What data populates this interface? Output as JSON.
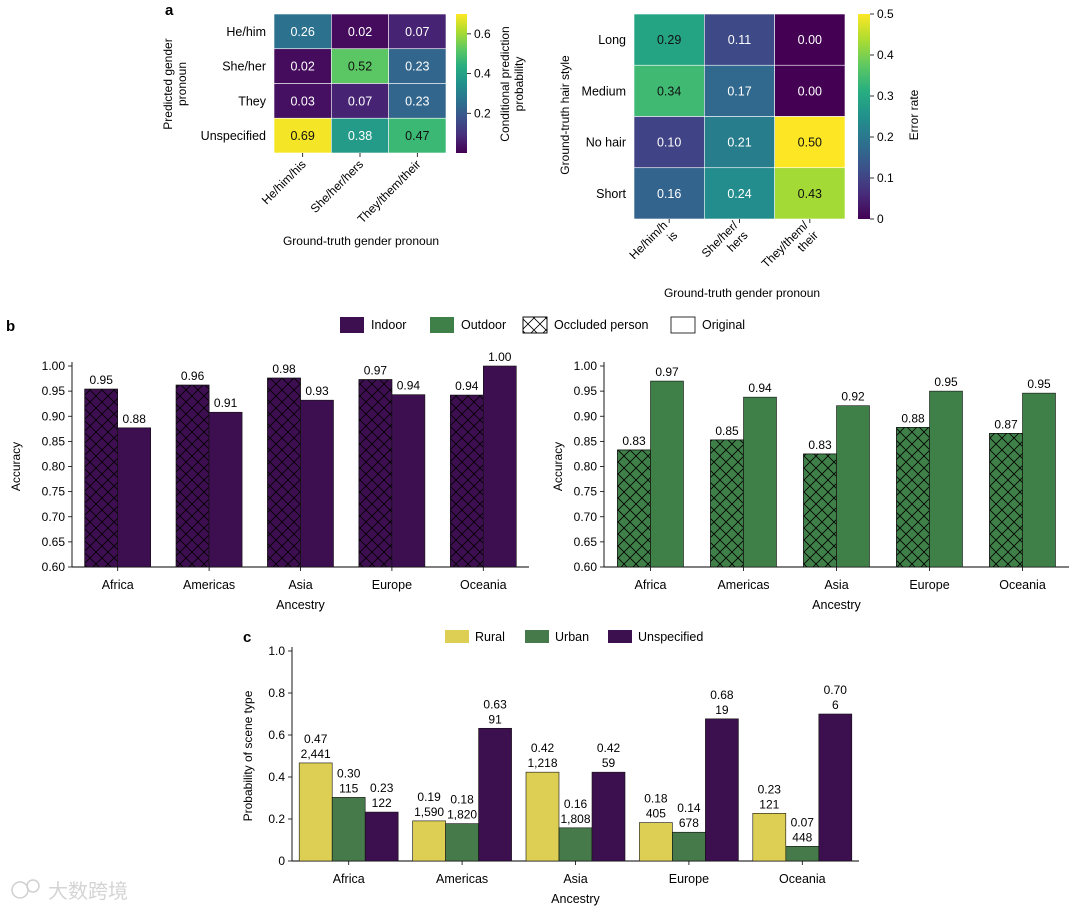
{
  "panel_labels": {
    "a": "a",
    "b": "b",
    "c": "c"
  },
  "watermark": "大数跨境",
  "colors": {
    "indoor": "#3e0f50",
    "outdoor": "#3f7f48",
    "rural": "#dccf54",
    "urban": "#467a4a",
    "unspecified": "#3c104e",
    "viridis": [
      "#440154",
      "#472d7b",
      "#3b528b",
      "#2c728e",
      "#21918c",
      "#28ae80",
      "#5ec962",
      "#addc30",
      "#fde725"
    ]
  },
  "chart_data": [
    {
      "id": "a-left",
      "type": "heatmap",
      "xlabel": "Ground-truth gender pronoun",
      "ylabel": "Predicted gender pronoun",
      "x_categories": [
        "He/him/his",
        "She/her/hers",
        "They/them/their"
      ],
      "y_categories": [
        "He/him",
        "She/her",
        "They",
        "Unspecified"
      ],
      "values": [
        [
          0.26,
          0.02,
          0.07
        ],
        [
          0.02,
          0.52,
          0.23
        ],
        [
          0.03,
          0.07,
          0.23
        ],
        [
          0.69,
          0.38,
          0.47
        ]
      ],
      "value_labels": [
        [
          "0.26",
          "0.02",
          "0.07"
        ],
        [
          "0.02",
          "0.52",
          "0.23"
        ],
        [
          "0.03",
          "0.07",
          "0.23"
        ],
        [
          "0.69",
          "0.38",
          "0.47"
        ]
      ],
      "colorbar": {
        "label": "Conditional prediction probability",
        "range": [
          0,
          0.7
        ],
        "ticks": [
          "0.2",
          "0.4",
          "0.6"
        ],
        "tick_values": [
          0.2,
          0.4,
          0.6
        ]
      }
    },
    {
      "id": "a-right",
      "type": "heatmap",
      "xlabel": "Ground-truth gender pronoun",
      "ylabel": "Ground-truth hair style",
      "x_categories": [
        "He/him/his",
        "She/her/hers",
        "They/them/their"
      ],
      "y_categories": [
        "Long",
        "Medium",
        "No hair",
        "Short"
      ],
      "values": [
        [
          0.29,
          0.11,
          0.0
        ],
        [
          0.34,
          0.17,
          0.0
        ],
        [
          0.1,
          0.21,
          0.5
        ],
        [
          0.16,
          0.24,
          0.43
        ]
      ],
      "value_labels": [
        [
          "0.29",
          "0.11",
          "0.00"
        ],
        [
          "0.34",
          "0.17",
          "0.00"
        ],
        [
          "0.10",
          "0.21",
          "0.50"
        ],
        [
          "0.16",
          "0.24",
          "0.43"
        ]
      ],
      "colorbar": {
        "label": "Error rate",
        "range": [
          0,
          0.5
        ],
        "ticks": [
          "0",
          "0.1",
          "0.2",
          "0.3",
          "0.4",
          "0.5"
        ],
        "tick_values": [
          0,
          0.1,
          0.2,
          0.3,
          0.4,
          0.5
        ]
      }
    },
    {
      "id": "b-left",
      "type": "bar",
      "xlabel": "Ancestry",
      "ylabel": "Accuracy",
      "categories": [
        "Africa",
        "Americas",
        "Asia",
        "Europe",
        "Oceania"
      ],
      "ylim": [
        0.6,
        1.0
      ],
      "yticks": [
        "0.60",
        "0.65",
        "0.70",
        "0.75",
        "0.80",
        "0.85",
        "0.90",
        "0.95",
        "1.00"
      ],
      "color_key": "indoor",
      "series": [
        {
          "name": "Occluded person",
          "hatched": true,
          "values": [
            0.954,
            0.962,
            0.976,
            0.973,
            0.942
          ],
          "labels": [
            "0.95",
            "0.96",
            "0.98",
            "0.97",
            "0.94"
          ]
        },
        {
          "name": "Original",
          "hatched": false,
          "values": [
            0.877,
            0.908,
            0.932,
            0.943,
            1.0
          ],
          "labels": [
            "0.88",
            "0.91",
            "0.93",
            "0.94",
            "1.00"
          ]
        }
      ]
    },
    {
      "id": "b-right",
      "type": "bar",
      "xlabel": "Ancestry",
      "ylabel": "Accuracy",
      "categories": [
        "Africa",
        "Americas",
        "Asia",
        "Europe",
        "Oceania"
      ],
      "ylim": [
        0.6,
        1.0
      ],
      "yticks": [
        "0.60",
        "0.65",
        "0.70",
        "0.75",
        "0.80",
        "0.85",
        "0.90",
        "0.95",
        "1.00"
      ],
      "color_key": "outdoor",
      "series": [
        {
          "name": "Occluded person",
          "hatched": true,
          "values": [
            0.833,
            0.853,
            0.825,
            0.878,
            0.866
          ],
          "labels": [
            "0.83",
            "0.85",
            "0.83",
            "0.88",
            "0.87"
          ]
        },
        {
          "name": "Original",
          "hatched": false,
          "values": [
            0.97,
            0.938,
            0.921,
            0.95,
            0.946
          ],
          "labels": [
            "0.97",
            "0.94",
            "0.92",
            "0.95",
            "0.95"
          ]
        }
      ]
    },
    {
      "id": "c",
      "type": "bar",
      "xlabel": "Ancestry",
      "ylabel": "Probability of scene type",
      "categories": [
        "Africa",
        "Americas",
        "Asia",
        "Europe",
        "Oceania"
      ],
      "ylim": [
        0,
        1.0
      ],
      "yticks": [
        "0",
        "0.2",
        "0.4",
        "0.6",
        "0.8",
        "1.0"
      ],
      "series": [
        {
          "name": "Rural",
          "color_key": "rural",
          "values": [
            0.467,
            0.191,
            0.423,
            0.183,
            0.227
          ],
          "labels": [
            "0.47",
            "0.19",
            "0.42",
            "0.18",
            "0.23"
          ],
          "counts": [
            "2,441",
            "1,590",
            "1,218",
            "405",
            "121"
          ]
        },
        {
          "name": "Urban",
          "color_key": "urban",
          "values": [
            0.303,
            0.178,
            0.158,
            0.137,
            0.07
          ],
          "labels": [
            "0.30",
            "0.18",
            "0.16",
            "0.14",
            "0.07"
          ],
          "counts": [
            "115",
            "1,820",
            "1,808",
            "678",
            "448"
          ]
        },
        {
          "name": "Unspecified",
          "color_key": "unspecified",
          "values": [
            0.233,
            0.632,
            0.423,
            0.677,
            0.7
          ],
          "labels": [
            "0.23",
            "0.63",
            "0.42",
            "0.68",
            "0.70"
          ],
          "counts": [
            "122",
            "91",
            "59",
            "19",
            "6"
          ]
        }
      ]
    }
  ],
  "legend_b": {
    "indoor": "Indoor",
    "outdoor": "Outdoor",
    "occluded": "Occluded person",
    "original": "Original"
  }
}
